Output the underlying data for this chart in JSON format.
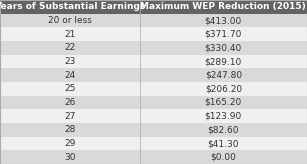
{
  "col1_header": "Years of Substantial Earnings",
  "col2_header": "Maximum WEP Reduction (2015)",
  "rows": [
    [
      "20 or less",
      "$413.00"
    ],
    [
      "21",
      "$371.70"
    ],
    [
      "22",
      "$330.40"
    ],
    [
      "23",
      "$289.10"
    ],
    [
      "24",
      "$247.80"
    ],
    [
      "25",
      "$206.20"
    ],
    [
      "26",
      "$165.20"
    ],
    [
      "27",
      "$123.90"
    ],
    [
      "28",
      "$82.60"
    ],
    [
      "29",
      "$41.30"
    ],
    [
      "30",
      "$0.00"
    ]
  ],
  "header_bg": "#636363",
  "header_fg": "#ffffff",
  "row_bg_odd": "#d9d9d9",
  "row_bg_even": "#f0f0f0",
  "row_fg": "#333333",
  "col_split": 0.455,
  "fig_w": 3.07,
  "fig_h": 1.64,
  "header_fontsize": 6.5,
  "row_fontsize": 6.5
}
